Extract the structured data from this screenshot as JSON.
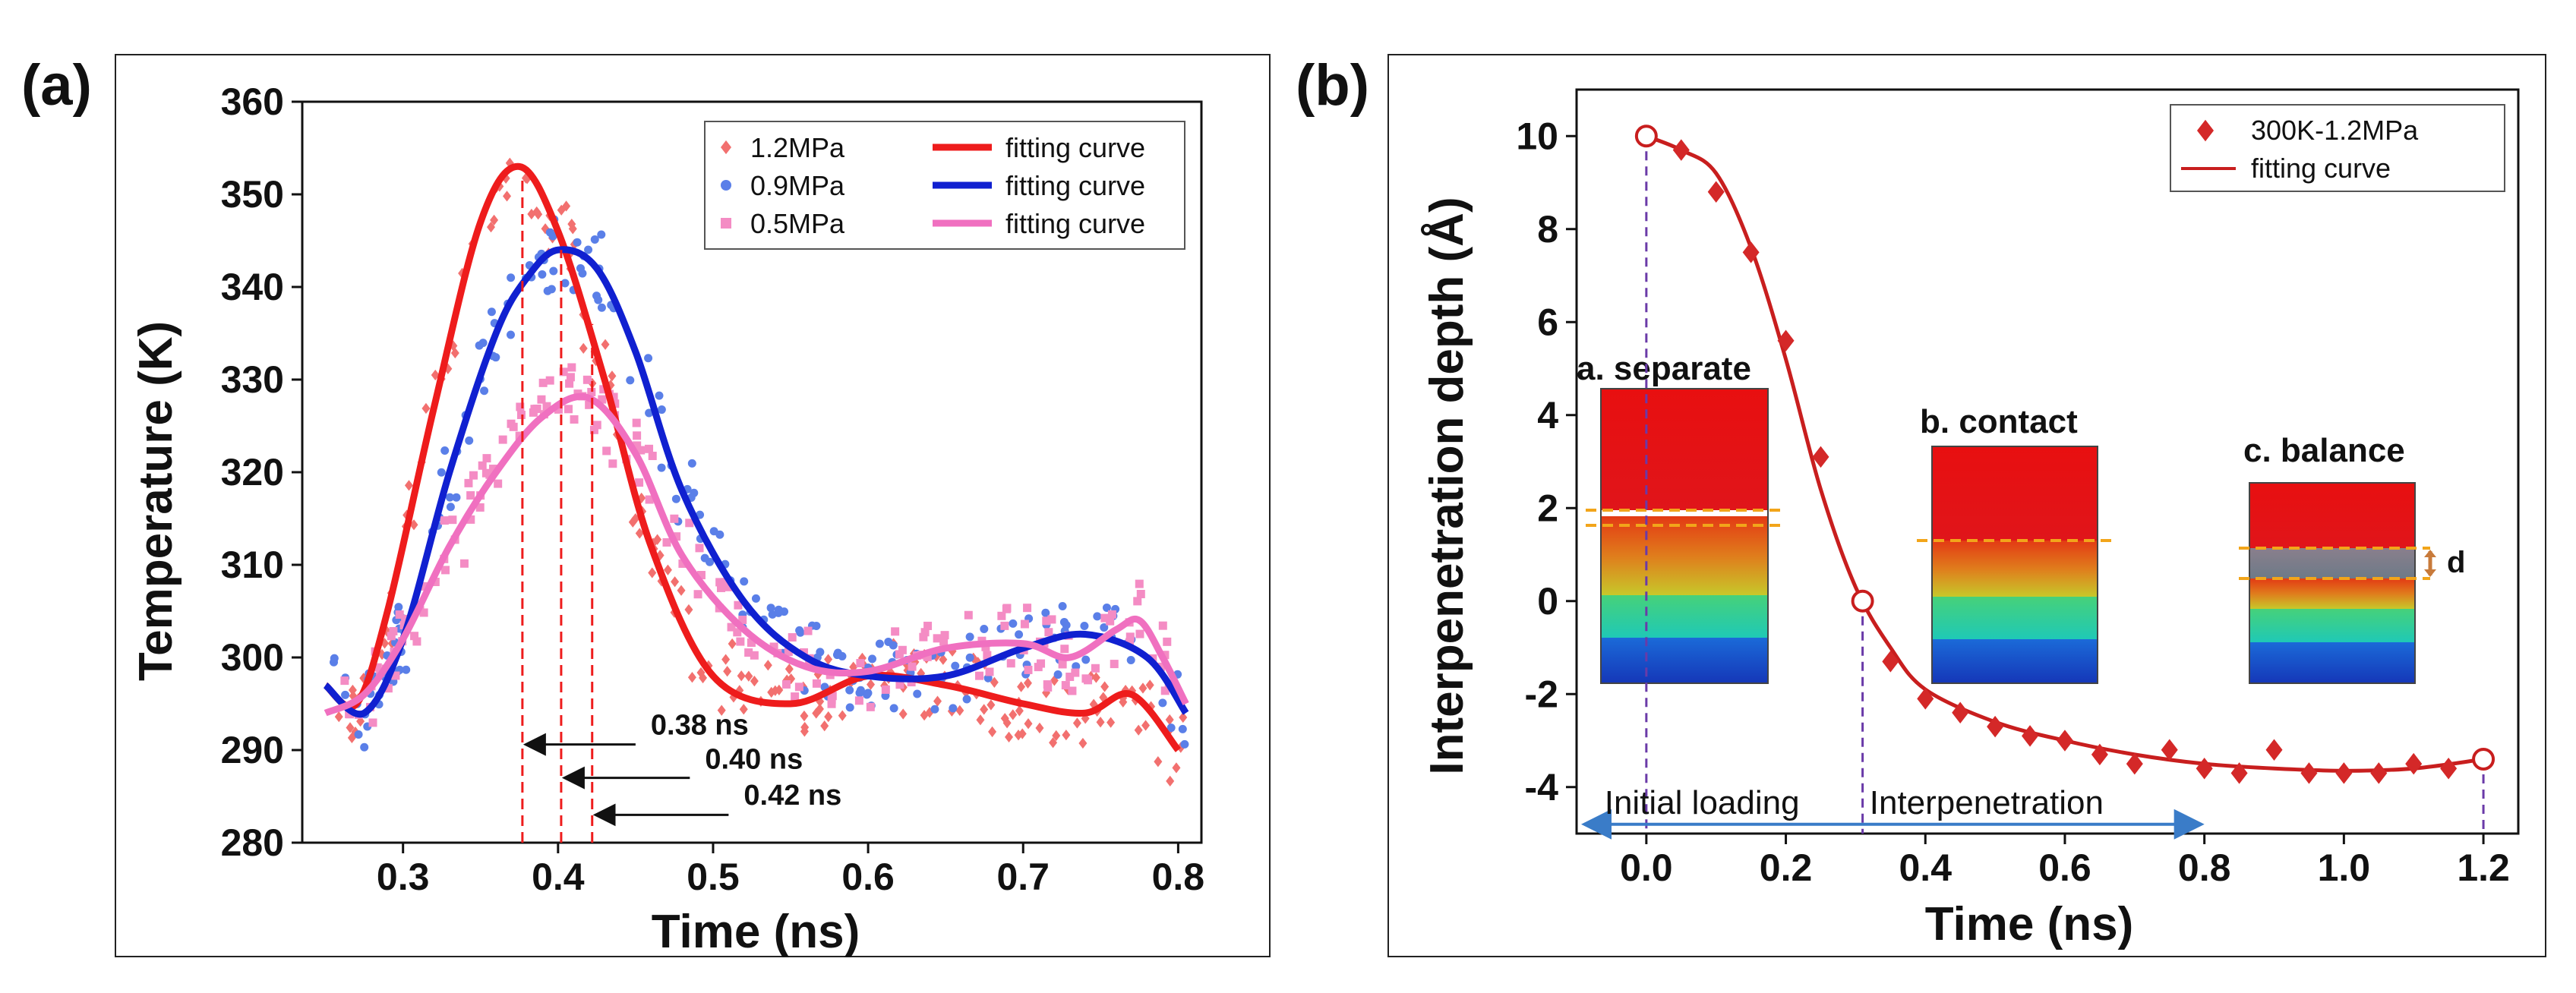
{
  "chart_data": [
    {
      "panel_label": "(a)",
      "type": "scatter",
      "xlabel": "Time (ns)",
      "ylabel": "Temperature (K)",
      "xlim": [
        0.235,
        0.815
      ],
      "ylim": [
        280,
        360
      ],
      "xticks": [
        0.3,
        0.4,
        0.5,
        0.6,
        0.7,
        0.8
      ],
      "yticks": [
        280,
        290,
        300,
        310,
        320,
        330,
        340,
        350,
        360
      ],
      "tick_decimals": 1,
      "legend": {
        "position": "top-right",
        "entries": [
          {
            "label": "1.2MPa",
            "kind": "scatter",
            "color": "#f2706f",
            "marker": "diamond"
          },
          {
            "label": "fitting curve",
            "kind": "line",
            "color": "#ee1c1c"
          },
          {
            "label": "0.9MPa",
            "kind": "scatter",
            "color": "#5a7fe8",
            "marker": "circle"
          },
          {
            "label": "fitting curve",
            "kind": "line",
            "color": "#1020d0"
          },
          {
            "label": "0.5MPa",
            "kind": "scatter",
            "color": "#f48cc4",
            "marker": "square"
          },
          {
            "label": "fitting curve",
            "kind": "line",
            "color": "#f070c0"
          }
        ]
      },
      "series": [
        {
          "name": "1.2MPa",
          "scatter_color": "#f2706f",
          "line_color": "#ee1c1c",
          "marker": "diamond",
          "noise": 4,
          "x_range": [
            0.255,
            0.805
          ],
          "n_points": 200,
          "seed": 11,
          "fit": [
            [
              0.25,
              297
            ],
            [
              0.27,
              295
            ],
            [
              0.29,
              305
            ],
            [
              0.32,
              327
            ],
            [
              0.35,
              347
            ],
            [
              0.375,
              353
            ],
            [
              0.4,
              346
            ],
            [
              0.43,
              330
            ],
            [
              0.46,
              312
            ],
            [
              0.5,
              298
            ],
            [
              0.55,
              295
            ],
            [
              0.6,
              298
            ],
            [
              0.65,
              297
            ],
            [
              0.7,
              295
            ],
            [
              0.74,
              294
            ],
            [
              0.77,
              296
            ],
            [
              0.8,
              290
            ]
          ]
        },
        {
          "name": "0.9MPa",
          "scatter_color": "#5a7fe8",
          "line_color": "#1020d0",
          "marker": "circle",
          "noise": 4,
          "x_range": [
            0.255,
            0.805
          ],
          "n_points": 200,
          "seed": 23,
          "fit": [
            [
              0.25,
              297
            ],
            [
              0.275,
              294
            ],
            [
              0.3,
              302
            ],
            [
              0.33,
              320
            ],
            [
              0.36,
              335
            ],
            [
              0.38,
              341
            ],
            [
              0.4,
              344
            ],
            [
              0.425,
              342
            ],
            [
              0.45,
              333
            ],
            [
              0.48,
              318
            ],
            [
              0.52,
              306
            ],
            [
              0.56,
              300
            ],
            [
              0.6,
              298
            ],
            [
              0.65,
              298
            ],
            [
              0.7,
              301
            ],
            [
              0.74,
              302.5
            ],
            [
              0.78,
              300
            ],
            [
              0.805,
              294
            ]
          ]
        },
        {
          "name": "0.5MPa",
          "scatter_color": "#f48cc4",
          "line_color": "#f070c0",
          "marker": "square",
          "noise": 4,
          "x_range": [
            0.255,
            0.805
          ],
          "n_points": 200,
          "seed": 37,
          "fit": [
            [
              0.25,
              294
            ],
            [
              0.275,
              296
            ],
            [
              0.3,
              302
            ],
            [
              0.33,
              312
            ],
            [
              0.36,
              320
            ],
            [
              0.39,
              326
            ],
            [
              0.42,
              328
            ],
            [
              0.45,
              322
            ],
            [
              0.48,
              311
            ],
            [
              0.52,
              303
            ],
            [
              0.56,
              299
            ],
            [
              0.6,
              298.5
            ],
            [
              0.65,
              301
            ],
            [
              0.7,
              301.5
            ],
            [
              0.73,
              300
            ],
            [
              0.76,
              303
            ],
            [
              0.775,
              304
            ],
            [
              0.79,
              300
            ],
            [
              0.805,
              295
            ]
          ]
        }
      ],
      "peak_markers": [
        {
          "x": 0.377,
          "label": "0.38 ns",
          "label_y": 292.5,
          "arrow_x0": 0.45,
          "arrow_y": 290.6,
          "color": "#ee1c1c"
        },
        {
          "x": 0.402,
          "label": "0.40 ns",
          "label_y": 288.8,
          "arrow_x0": 0.485,
          "arrow_y": 287,
          "color": "#ee1c1c"
        },
        {
          "x": 0.422,
          "label": "0.42 ns",
          "label_y": 284.9,
          "arrow_x0": 0.51,
          "arrow_y": 283,
          "color": "#ee1c1c"
        }
      ]
    },
    {
      "panel_label": "(b)",
      "type": "scatter",
      "xlabel": "Time (ns)",
      "ylabel": "Interpenetration depth (Å)",
      "xlim": [
        -0.1,
        1.25
      ],
      "ylim": [
        -5,
        11
      ],
      "xticks": [
        0.0,
        0.2,
        0.4,
        0.6,
        0.8,
        1.0,
        1.2
      ],
      "yticks": [
        -4,
        -2,
        0,
        2,
        4,
        6,
        8,
        10
      ],
      "tick_decimals_x": 1,
      "tick_decimals_y": 0,
      "legend": {
        "position": "top-right",
        "entries": [
          {
            "label": "300K-1.2MPa",
            "kind": "scatter",
            "color": "#d42828",
            "marker": "diamond"
          },
          {
            "label": "fitting curve",
            "kind": "line",
            "color": "#c81e1e"
          }
        ]
      },
      "series": [
        {
          "name": "300K-1.2MPa",
          "scatter_color": "#d42828",
          "line_color": "#c81e1e",
          "marker": "diamond",
          "x": [
            0.05,
            0.1,
            0.15,
            0.2,
            0.25,
            0.35,
            0.4,
            0.45,
            0.5,
            0.55,
            0.6,
            0.65,
            0.7,
            0.75,
            0.8,
            0.85,
            0.9,
            0.95,
            1.0,
            1.05,
            1.1,
            1.15
          ],
          "y": [
            9.7,
            8.8,
            7.5,
            5.6,
            3.1,
            -1.3,
            -2.1,
            -2.4,
            -2.7,
            -2.9,
            -3.0,
            -3.3,
            -3.5,
            -3.2,
            -3.6,
            -3.7,
            -3.2,
            -3.7,
            -3.7,
            -3.7,
            -3.5,
            -3.6
          ],
          "fit": [
            [
              0,
              10
            ],
            [
              0.05,
              9.7
            ],
            [
              0.1,
              9.2
            ],
            [
              0.15,
              7.6
            ],
            [
              0.2,
              5.2
            ],
            [
              0.25,
              2.4
            ],
            [
              0.3,
              0.3
            ],
            [
              0.35,
              -1.0
            ],
            [
              0.4,
              -1.9
            ],
            [
              0.5,
              -2.6
            ],
            [
              0.6,
              -3.0
            ],
            [
              0.7,
              -3.3
            ],
            [
              0.8,
              -3.5
            ],
            [
              0.9,
              -3.6
            ],
            [
              1.0,
              -3.65
            ],
            [
              1.1,
              -3.6
            ],
            [
              1.2,
              -3.4
            ]
          ]
        }
      ],
      "open_markers": [
        {
          "x": 0.0,
          "y": 10
        },
        {
          "x": 0.31,
          "y": 0
        },
        {
          "x": 1.2,
          "y": -3.4
        }
      ],
      "guide_lines": [
        0.0,
        0.31,
        1.2
      ],
      "phases": {
        "left": "Initial loading",
        "right": "Interpenetration",
        "arrow_from": -0.1,
        "arrow_to": 0.8,
        "arrow_y": -4.8
      },
      "insets": [
        {
          "label": "a. separate"
        },
        {
          "label": "b. contact"
        },
        {
          "label": "c. balance",
          "annotation": "d"
        }
      ]
    }
  ]
}
